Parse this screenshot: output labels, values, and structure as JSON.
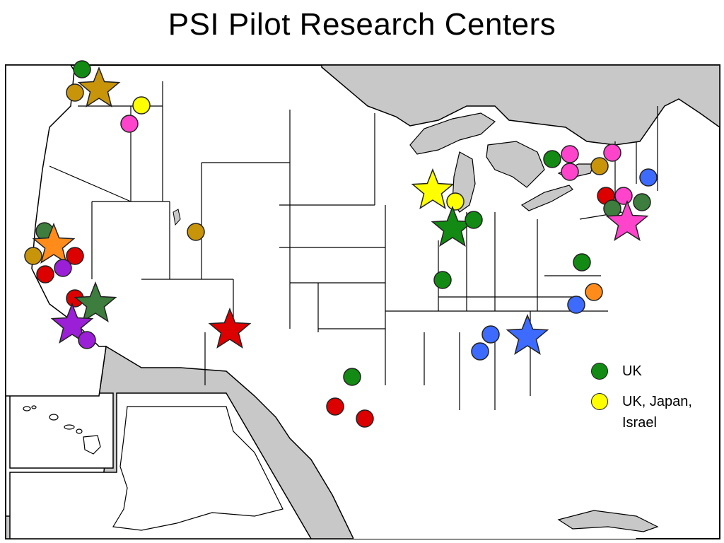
{
  "title": "PSI Pilot Research Centers",
  "legend": [
    {
      "label_lines": [
        "UK"
      ],
      "color": "#138a13"
    },
    {
      "label_lines": [
        "UK, Japan,",
        "Israel"
      ],
      "color": "#ffff00"
    }
  ],
  "colors": {
    "land": "#ffffff",
    "water": "#c8c8c8",
    "border": "#000000"
  },
  "markers": [
    {
      "shape": "circle",
      "color": "#138a13",
      "region": "Washington"
    },
    {
      "shape": "circle",
      "color": "#c8940a",
      "region": "Washington"
    },
    {
      "shape": "star",
      "color": "#c8940a",
      "region": "Washington"
    },
    {
      "shape": "circle",
      "color": "#ffff00",
      "region": "Washington"
    },
    {
      "shape": "circle",
      "color": "#ff44cc",
      "region": "Washington"
    },
    {
      "shape": "circle",
      "color": "#c8940a",
      "region": "Utah"
    },
    {
      "shape": "circle",
      "color": "#3d7d3d",
      "region": "Northern California"
    },
    {
      "shape": "star",
      "color": "#ff8c1a",
      "region": "Northern California"
    },
    {
      "shape": "circle",
      "color": "#c8940a",
      "region": "Northern California"
    },
    {
      "shape": "circle",
      "color": "#dd0000",
      "region": "Northern California"
    },
    {
      "shape": "circle",
      "color": "#dd0000",
      "region": "Northern California"
    },
    {
      "shape": "circle",
      "color": "#9b1fd6",
      "region": "Northern California"
    },
    {
      "shape": "circle",
      "color": "#dd0000",
      "region": "Southern California"
    },
    {
      "shape": "star",
      "color": "#3d7d3d",
      "region": "Southern California"
    },
    {
      "shape": "star",
      "color": "#9b1fd6",
      "region": "Southern California"
    },
    {
      "shape": "circle",
      "color": "#9b1fd6",
      "region": "Southern California"
    },
    {
      "shape": "star",
      "color": "#dd0000",
      "region": "New Mexico"
    },
    {
      "shape": "circle",
      "color": "#138a13",
      "region": "Texas"
    },
    {
      "shape": "circle",
      "color": "#dd0000",
      "region": "Texas"
    },
    {
      "shape": "circle",
      "color": "#dd0000",
      "region": "Texas"
    },
    {
      "shape": "star",
      "color": "#ffff00",
      "region": "Wisconsin"
    },
    {
      "shape": "circle",
      "color": "#ffff00",
      "region": "Wisconsin"
    },
    {
      "shape": "star",
      "color": "#138a13",
      "region": "Illinois"
    },
    {
      "shape": "circle",
      "color": "#138a13",
      "region": "Indiana"
    },
    {
      "shape": "circle",
      "color": "#138a13",
      "region": "Missouri"
    },
    {
      "shape": "circle",
      "color": "#138a13",
      "region": "Upstate New York"
    },
    {
      "shape": "circle",
      "color": "#ff44cc",
      "region": "Upstate New York"
    },
    {
      "shape": "circle",
      "color": "#ff44cc",
      "region": "Upstate New York"
    },
    {
      "shape": "circle",
      "color": "#ff44cc",
      "region": "Upstate New York"
    },
    {
      "shape": "circle",
      "color": "#c8940a",
      "region": "Upstate New York"
    },
    {
      "shape": "circle",
      "color": "#3d6bff",
      "region": "Massachusetts"
    },
    {
      "shape": "circle",
      "color": "#dd0000",
      "region": "New York"
    },
    {
      "shape": "circle",
      "color": "#ff44cc",
      "region": "New York"
    },
    {
      "shape": "circle",
      "color": "#3d7d3d",
      "region": "New York"
    },
    {
      "shape": "circle",
      "color": "#3d7d3d",
      "region": "Connecticut"
    },
    {
      "shape": "star",
      "color": "#ff44cc",
      "region": "New Jersey"
    },
    {
      "shape": "circle",
      "color": "#138a13",
      "region": "Virginia"
    },
    {
      "shape": "circle",
      "color": "#ff8c1a",
      "region": "North Carolina"
    },
    {
      "shape": "circle",
      "color": "#3d6bff",
      "region": "North Carolina"
    },
    {
      "shape": "circle",
      "color": "#3d6bff",
      "region": "Alabama"
    },
    {
      "shape": "circle",
      "color": "#3d6bff",
      "region": "Alabama"
    },
    {
      "shape": "star",
      "color": "#3d6bff",
      "region": "Georgia"
    }
  ]
}
